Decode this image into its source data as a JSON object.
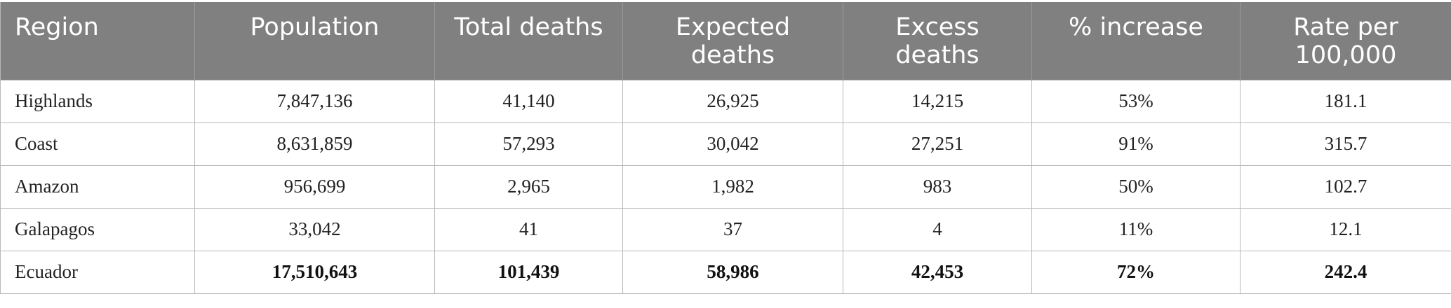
{
  "table": {
    "headers": [
      [
        "Region"
      ],
      [
        "Population"
      ],
      [
        "Total deaths"
      ],
      [
        "Expected",
        "deaths"
      ],
      [
        "Excess",
        "deaths"
      ],
      [
        "% increase"
      ],
      [
        "Rate per",
        "100,000"
      ]
    ],
    "rows": [
      [
        "Highlands",
        "7,847,136",
        "41,140",
        "26,925",
        "14,215",
        "53%",
        "181.1"
      ],
      [
        "Coast",
        "8,631,859",
        "57,293",
        "30,042",
        "27,251",
        "91%",
        "315.7"
      ],
      [
        "Amazon",
        "956,699",
        "2,965",
        "1,982",
        "983",
        "50%",
        "102.7"
      ],
      [
        "Galapagos",
        "33,042",
        "41",
        "37",
        "4",
        "11%",
        "12.1"
      ],
      [
        "Ecuador",
        "17,510,643",
        "101,439",
        "58,986",
        "42,453",
        "72%",
        "242.4"
      ]
    ]
  },
  "colors": {
    "header_background": "#808080",
    "header_text": "#ffffff",
    "grid_line": "#b8b8b8"
  }
}
